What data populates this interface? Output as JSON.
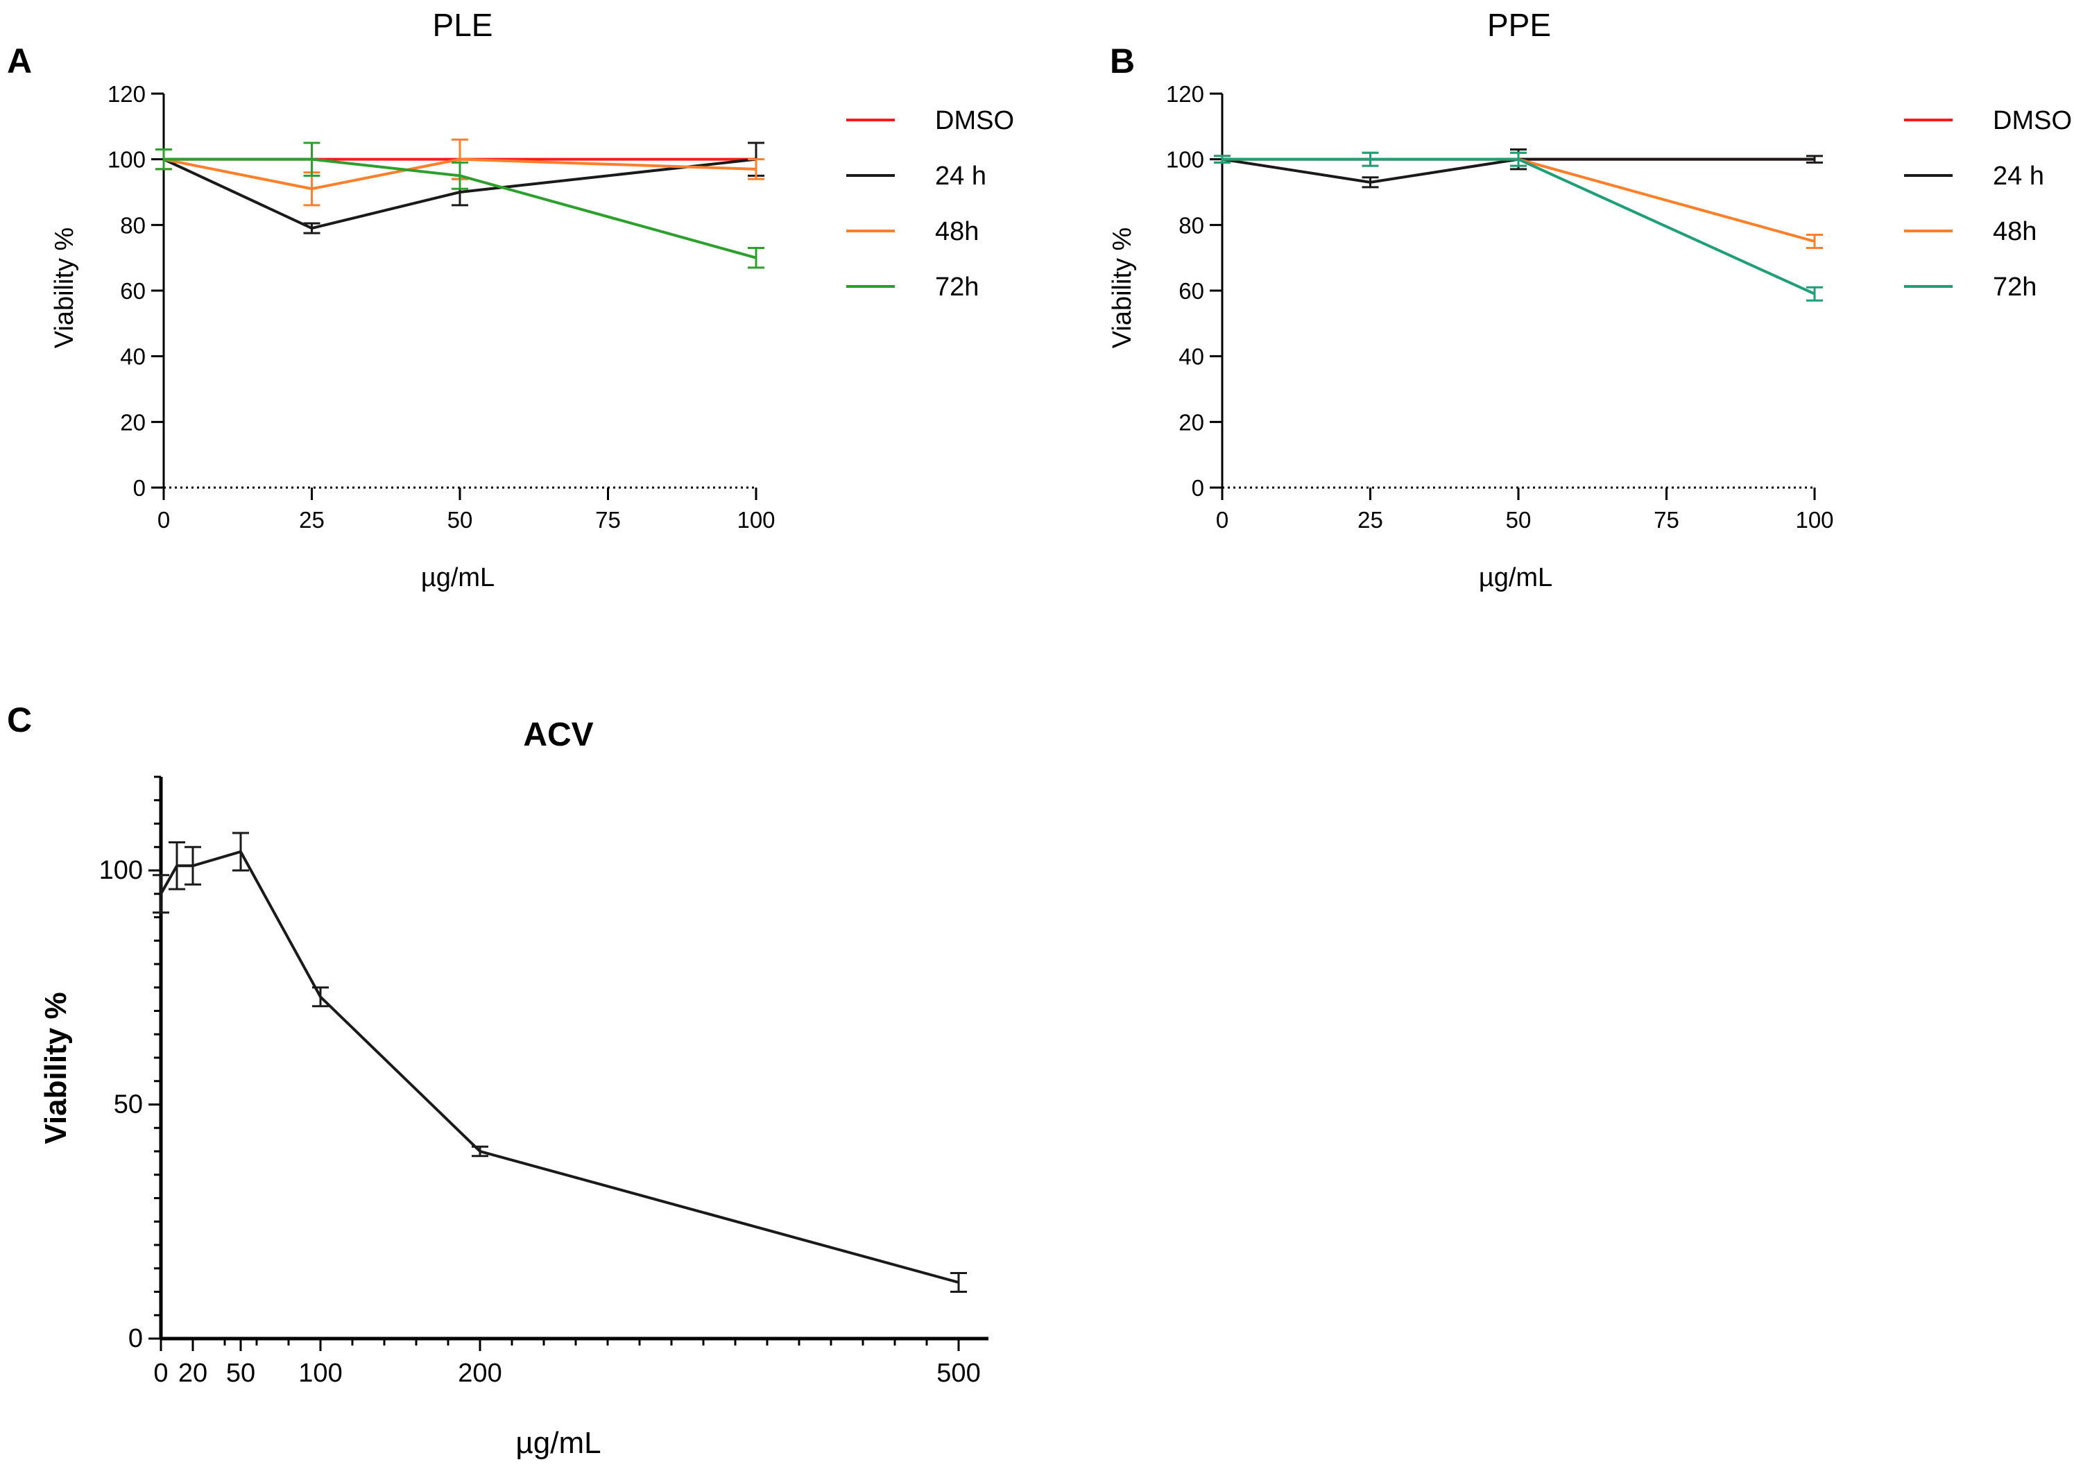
{
  "chart_data": [
    {
      "panel": "A",
      "type": "line",
      "title": "PLE",
      "xlabel": "µg/mL",
      "ylabel": "Viability %",
      "xlim": [
        0,
        100
      ],
      "ylim": [
        0,
        120
      ],
      "xticks": [
        0,
        25,
        50,
        75,
        100
      ],
      "yticks": [
        0,
        20,
        40,
        60,
        80,
        100,
        120
      ],
      "legend_position": "right",
      "series": [
        {
          "name": "DMSO",
          "color": "#ff1a1a",
          "x": [
            0,
            100
          ],
          "y": [
            100,
            100
          ],
          "err": [
            0,
            0
          ]
        },
        {
          "name": "24 h",
          "color": "#1a1a1a",
          "x": [
            0,
            25,
            50,
            100
          ],
          "y": [
            100,
            79,
            90,
            100
          ],
          "err": [
            3,
            1.5,
            4,
            5
          ]
        },
        {
          "name": "48h",
          "color": "#ff7f2a",
          "x": [
            0,
            25,
            50,
            100
          ],
          "y": [
            100,
            91,
            100,
            97
          ],
          "err": [
            3,
            5,
            6,
            3
          ]
        },
        {
          "name": "72h",
          "color": "#2ca02c",
          "x": [
            0,
            25,
            50,
            100
          ],
          "y": [
            100,
            100,
            95,
            70
          ],
          "err": [
            3,
            5,
            4,
            3
          ]
        }
      ]
    },
    {
      "panel": "B",
      "type": "line",
      "title": "PPE",
      "xlabel": "µg/mL",
      "ylabel": "Viability %",
      "xlim": [
        0,
        100
      ],
      "ylim": [
        0,
        120
      ],
      "xticks": [
        0,
        25,
        50,
        75,
        100
      ],
      "yticks": [
        0,
        20,
        40,
        60,
        80,
        100,
        120
      ],
      "legend_position": "right",
      "series": [
        {
          "name": "DMSO",
          "color": "#ff1a1a",
          "x": [
            0,
            100
          ],
          "y": [
            100,
            100
          ],
          "err": [
            0,
            0
          ]
        },
        {
          "name": "24 h",
          "color": "#1a1a1a",
          "x": [
            0,
            25,
            50,
            100
          ],
          "y": [
            100,
            93,
            100,
            100
          ],
          "err": [
            1,
            1.5,
            3,
            1
          ]
        },
        {
          "name": "48h",
          "color": "#ff7f2a",
          "x": [
            0,
            25,
            50,
            100
          ],
          "y": [
            100,
            100,
            100,
            75
          ],
          "err": [
            1,
            2,
            2,
            2
          ]
        },
        {
          "name": "72h",
          "color": "#1f9e78",
          "x": [
            0,
            25,
            50,
            100
          ],
          "y": [
            100,
            100,
            100,
            59
          ],
          "err": [
            1,
            2,
            2,
            2
          ]
        }
      ]
    },
    {
      "panel": "C",
      "type": "line",
      "title": "ACV",
      "xlabel": "µg/mL",
      "ylabel": "Viability %",
      "xlim": [
        0,
        510
      ],
      "ylim": [
        0,
        120
      ],
      "xticks": [
        0,
        20,
        50,
        100,
        200,
        500
      ],
      "yticks": [
        0,
        50,
        100
      ],
      "legend_position": "none",
      "series": [
        {
          "name": "ACV",
          "color": "#1a1a1a",
          "x": [
            0,
            10,
            20,
            50,
            100,
            200,
            500
          ],
          "y": [
            95,
            101,
            101,
            104,
            73,
            40,
            12
          ],
          "err": [
            4,
            5,
            4,
            4,
            2,
            1,
            2
          ]
        }
      ]
    }
  ]
}
